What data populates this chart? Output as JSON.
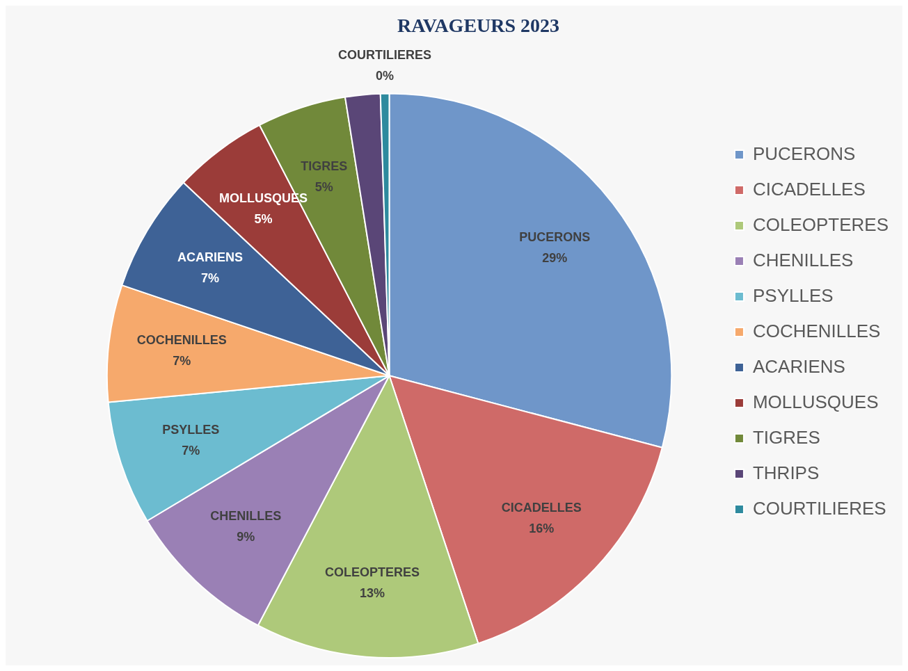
{
  "chart_data": {
    "type": "pie",
    "title": "RAVAGEURS 2023",
    "categories": [
      "PUCERONS",
      "CICADELLES",
      "COLEOPTERES",
      "CHENILLES",
      "PSYLLES",
      "COCHENILLES",
      "ACARIENS",
      "MOLLUSQUES",
      "TIGRES",
      "THRIPS",
      "COURTILIERES"
    ],
    "values": [
      29.1,
      15.8,
      12.8,
      8.7,
      7.1,
      6.7,
      6.8,
      5.4,
      5.1,
      2.0,
      0.5
    ],
    "value_labels": [
      "29%",
      "16%",
      "13%",
      "9%",
      "7%",
      "7%",
      "7%",
      "5%",
      "5%",
      null,
      "0%"
    ],
    "colors": [
      "#6f96c9",
      "#cf6a68",
      "#aec97a",
      "#9a80b5",
      "#6cbcd0",
      "#f6a96c",
      "#3e6296",
      "#9b3c39",
      "#71893a",
      "#5a4677",
      "#2e8a9e"
    ],
    "legend": "right"
  }
}
